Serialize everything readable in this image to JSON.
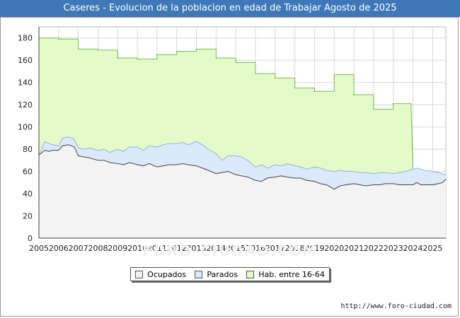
{
  "header": {
    "title": "Caseres - Evolucion de la poblacion en edad de Trabajar Agosto de 2025"
  },
  "watermark": "FORO-CIUDAD.COM",
  "footer": {
    "source": "http://www.foro-ciudad.com"
  },
  "colors": {
    "title_bg": "#3f78b8",
    "ocupados_fill": "#f3f3f3",
    "parados_fill": "#dbe9fb",
    "habitantes_fill": "#e4fbc9",
    "habitantes_line": "#6fbf4e",
    "parados_line": "#8fb3dd",
    "ocupados_line": "#444444",
    "grid": "#d8d8d8"
  },
  "chart_data": {
    "type": "area",
    "title": "Caseres - Evolucion de la poblacion en edad de Trabajar Agosto de 2025",
    "xlabel": "",
    "ylabel": "",
    "xlim": [
      2005,
      2025.67
    ],
    "ylim": [
      0,
      190
    ],
    "yticks": [
      0,
      20,
      40,
      60,
      80,
      100,
      120,
      140,
      160,
      180
    ],
    "xticks": [
      "2005",
      "2006",
      "2007",
      "2008",
      "2009",
      "2010",
      "2011",
      "2012",
      "2013",
      "2014",
      "2015",
      "2016",
      "2017",
      "2018",
      "2019",
      "2020",
      "2021",
      "2022",
      "2023",
      "2024",
      "2025"
    ],
    "grid": true,
    "legend": [
      "Ocupados",
      "Parados",
      "Hab. entre 16-64"
    ],
    "legend_position": "bottom",
    "series": [
      {
        "name": "Hab. entre 16-64",
        "style": "step",
        "years": [
          2005,
          2006,
          2007,
          2008,
          2009,
          2010,
          2011,
          2012,
          2013,
          2014,
          2015,
          2016,
          2017,
          2018,
          2019,
          2020,
          2021,
          2022,
          2023
        ],
        "values": [
          180,
          179,
          170,
          169,
          162,
          161,
          165,
          168,
          170,
          162,
          158,
          148,
          144,
          135,
          132,
          147,
          129,
          116,
          121
        ]
      },
      {
        "name": "Parados",
        "style": "line",
        "x": [
          2005,
          2005.1,
          2005.3,
          2005.5,
          2005.7,
          2006,
          2006.2,
          2006.5,
          2006.8,
          2007,
          2007.3,
          2007.6,
          2008,
          2008.3,
          2008.6,
          2009,
          2009.3,
          2009.6,
          2010,
          2010.3,
          2010.6,
          2011,
          2011.3,
          2011.6,
          2012,
          2012.3,
          2012.6,
          2013,
          2013.3,
          2013.6,
          2014,
          2014.3,
          2014.6,
          2015,
          2015.3,
          2015.6,
          2016,
          2016.3,
          2016.6,
          2017,
          2017.3,
          2017.6,
          2018,
          2018.3,
          2018.6,
          2019,
          2019.3,
          2019.6,
          2020,
          2020.3,
          2020.6,
          2021,
          2021.3,
          2021.6,
          2022,
          2022.3,
          2022.6,
          2023,
          2023.3,
          2023.6,
          2024,
          2024.2,
          2024.4,
          2024.6,
          2025,
          2025.3,
          2025.5,
          2025.67
        ],
        "values": [
          76,
          78,
          87,
          85,
          84,
          83,
          90,
          91,
          89,
          81,
          80,
          81,
          79,
          80,
          77,
          80,
          78,
          82,
          82,
          79,
          83,
          82,
          84,
          85,
          85,
          86,
          84,
          87,
          84,
          80,
          76,
          70,
          74,
          74,
          73,
          70,
          64,
          66,
          63,
          66,
          65,
          67,
          65,
          64,
          62,
          64,
          63,
          61,
          60,
          61,
          60,
          60,
          59,
          59,
          58,
          59,
          59,
          58,
          59,
          60,
          62,
          63,
          62,
          61,
          60,
          59,
          58,
          57
        ]
      },
      {
        "name": "Ocupados",
        "style": "line",
        "x": [
          2005,
          2005.1,
          2005.3,
          2005.5,
          2005.7,
          2006,
          2006.2,
          2006.5,
          2006.8,
          2007,
          2007.3,
          2007.6,
          2008,
          2008.3,
          2008.6,
          2009,
          2009.3,
          2009.6,
          2010,
          2010.3,
          2010.6,
          2011,
          2011.3,
          2011.6,
          2012,
          2012.3,
          2012.6,
          2013,
          2013.3,
          2013.6,
          2014,
          2014.3,
          2014.6,
          2015,
          2015.3,
          2015.6,
          2016,
          2016.3,
          2016.6,
          2017,
          2017.3,
          2017.6,
          2018,
          2018.3,
          2018.6,
          2019,
          2019.3,
          2019.6,
          2020,
          2020.3,
          2020.6,
          2021,
          2021.3,
          2021.6,
          2022,
          2022.3,
          2022.6,
          2023,
          2023.3,
          2023.6,
          2024,
          2024.2,
          2024.4,
          2024.6,
          2025,
          2025.3,
          2025.5,
          2025.67
        ],
        "values": [
          75,
          76,
          79,
          78,
          79,
          79,
          83,
          84,
          82,
          74,
          73,
          72,
          70,
          70,
          68,
          67,
          66,
          68,
          66,
          65,
          67,
          64,
          65,
          66,
          66,
          67,
          66,
          65,
          63,
          61,
          58,
          59,
          60,
          57,
          56,
          55,
          52,
          51,
          54,
          55,
          56,
          55,
          54,
          54,
          52,
          51,
          49,
          48,
          44,
          47,
          48,
          49,
          48,
          47,
          48,
          48,
          49,
          49,
          48,
          48,
          48,
          50,
          48,
          48,
          48,
          49,
          50,
          53
        ]
      }
    ]
  }
}
